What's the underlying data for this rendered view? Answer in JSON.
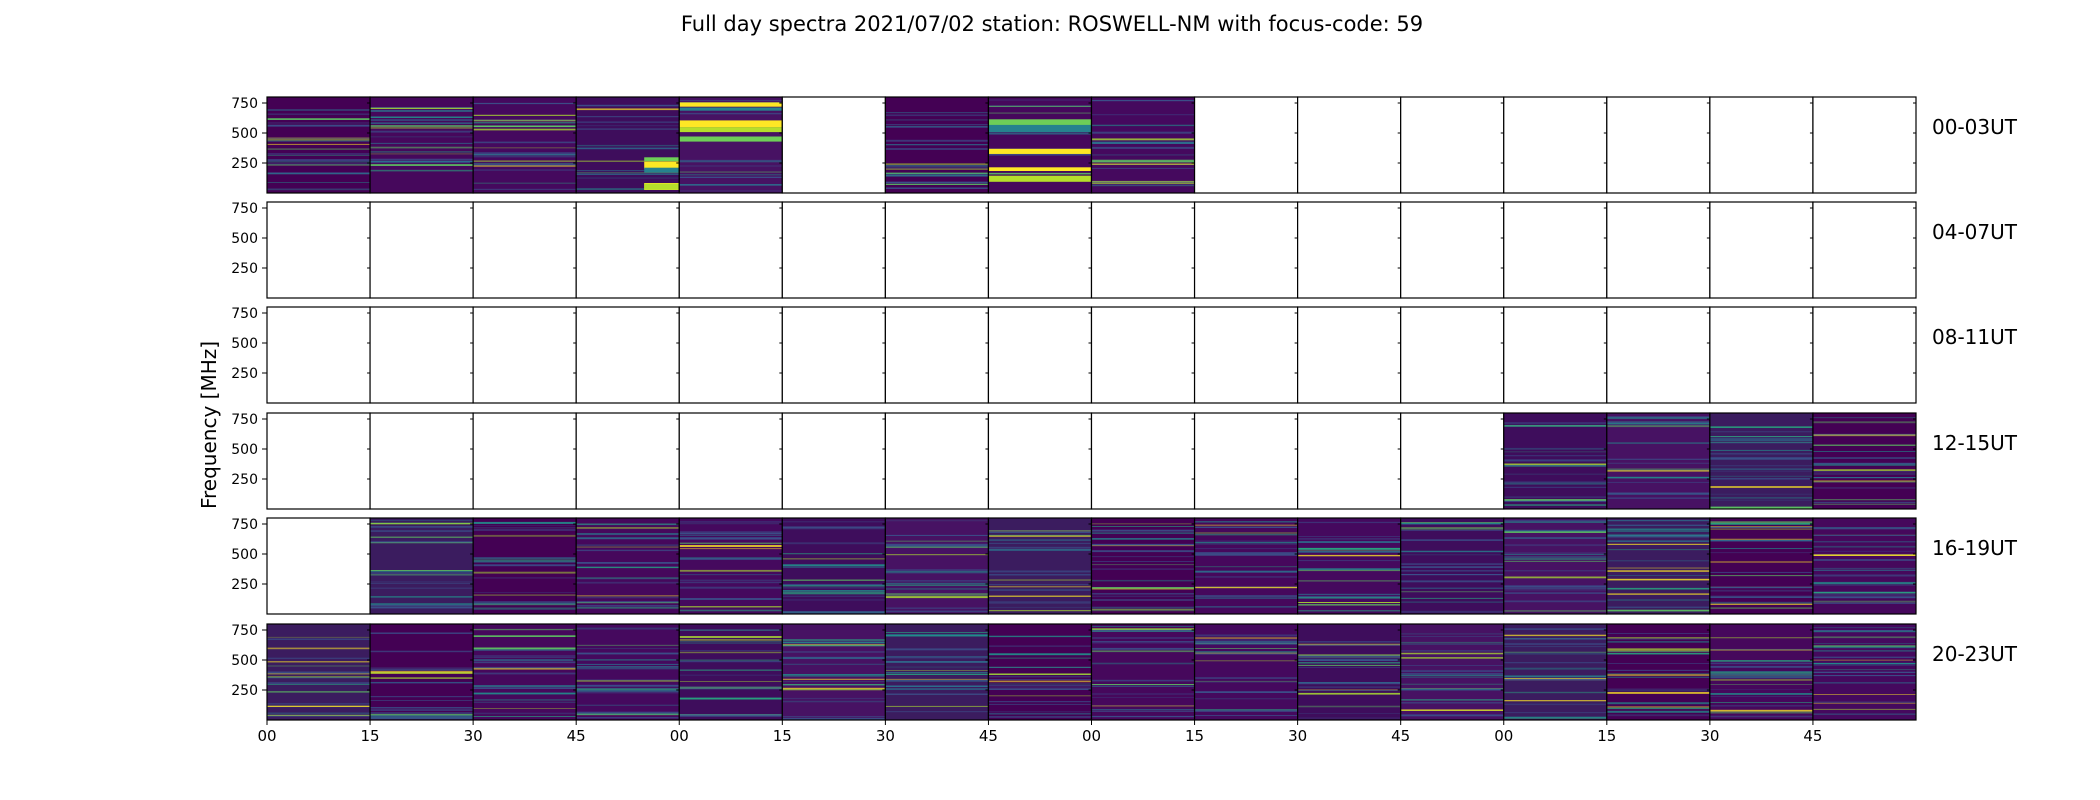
{
  "chart_data": {
    "type": "heatmap",
    "title": "Full day spectra 2021/07/02 station: ROSWELL-NM with focus-code: 59",
    "ylabel": "Frequency [MHz]",
    "xlabel": "",
    "y_range": [
      0,
      800
    ],
    "y_ticks": [
      250,
      500,
      750
    ],
    "x_tick_labels": [
      "00",
      "15",
      "30",
      "45",
      "00",
      "15",
      "30",
      "45",
      "00",
      "15",
      "30",
      "45",
      "00",
      "15",
      "30",
      "45"
    ],
    "grid": false,
    "colormap": "viridis",
    "rows": [
      {
        "label": "00-03UT",
        "panels": [
          "data",
          "data",
          "data",
          "data_bright",
          "data_bright",
          "empty",
          "data",
          "data_bright",
          "data",
          "empty",
          "empty",
          "empty",
          "empty",
          "empty",
          "empty",
          "empty"
        ]
      },
      {
        "label": "04-07UT",
        "panels": [
          "empty",
          "empty",
          "empty",
          "empty",
          "empty",
          "empty",
          "empty",
          "empty",
          "empty",
          "empty",
          "empty",
          "empty",
          "empty",
          "empty",
          "empty",
          "empty"
        ]
      },
      {
        "label": "08-11UT",
        "panels": [
          "empty",
          "empty",
          "empty",
          "empty",
          "empty",
          "empty",
          "empty",
          "empty",
          "empty",
          "empty",
          "empty",
          "empty",
          "empty",
          "empty",
          "empty",
          "empty"
        ]
      },
      {
        "label": "12-15UT",
        "panels": [
          "empty",
          "empty",
          "empty",
          "empty",
          "empty",
          "empty",
          "empty",
          "empty",
          "empty",
          "empty",
          "empty",
          "empty",
          "data",
          "data",
          "data",
          "data"
        ]
      },
      {
        "label": "16-19UT",
        "panels": [
          "empty",
          "data",
          "data",
          "data",
          "data",
          "data",
          "data",
          "data",
          "data",
          "data",
          "data",
          "data",
          "data",
          "data",
          "data",
          "data"
        ]
      },
      {
        "label": "20-23UT",
        "panels": [
          "data",
          "data",
          "data",
          "data",
          "data",
          "data",
          "data",
          "data",
          "data",
          "data",
          "data",
          "data",
          "data",
          "data",
          "data",
          "data"
        ]
      }
    ]
  }
}
